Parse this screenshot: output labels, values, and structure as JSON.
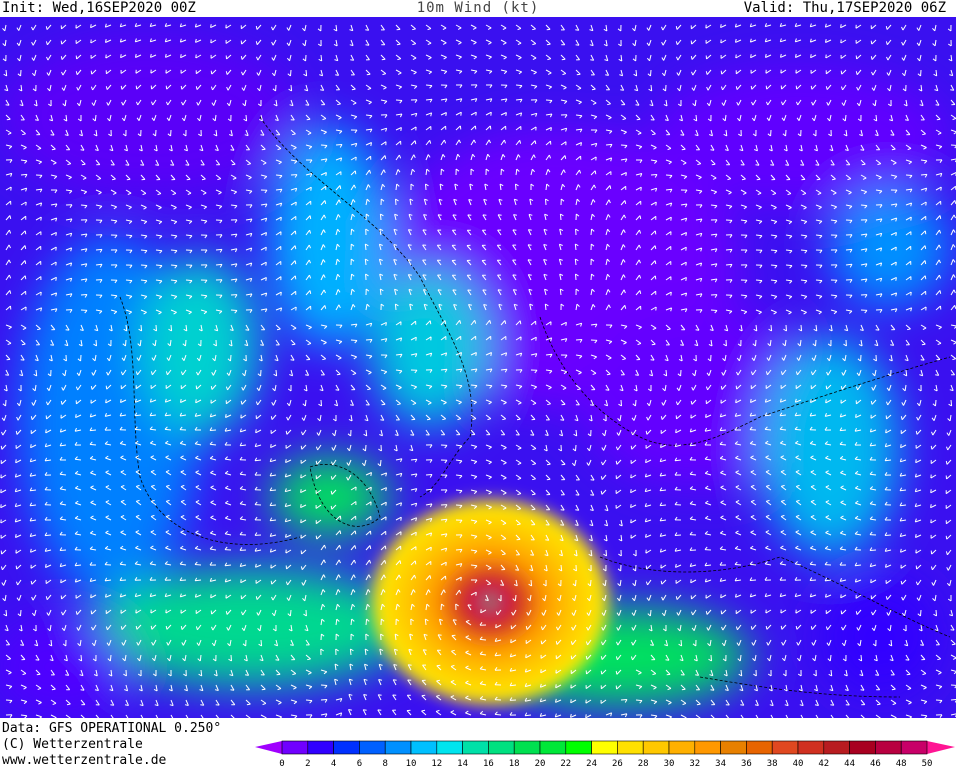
{
  "header": {
    "init": "Init: Wed,16SEP2020 00Z",
    "title": "10m Wind (kt)",
    "valid": "Valid: Thu,17SEP2020 06Z"
  },
  "footer": {
    "data_source": "Data: GFS OPERATIONAL 0.250°",
    "copyright": "(C) Wetterzentrale",
    "url": "www.wetterzentrale.de"
  },
  "legend": {
    "unit": "kt",
    "ticks": [
      "0",
      "2",
      "4",
      "6",
      "8",
      "10",
      "12",
      "14",
      "16",
      "18",
      "20",
      "22",
      "24",
      "26",
      "28",
      "30",
      "32",
      "34",
      "36",
      "38",
      "40",
      "42",
      "44",
      "46",
      "48",
      "50"
    ],
    "colors": [
      "#7000ff",
      "#3000ff",
      "#0030ff",
      "#0060ff",
      "#0090ff",
      "#00c0ff",
      "#00e4ee",
      "#00e0a8",
      "#00e080",
      "#00e050",
      "#00e838",
      "#00ff00",
      "#ffff00",
      "#ffe000",
      "#ffc800",
      "#ffb000",
      "#ff9800",
      "#e88000",
      "#e86400",
      "#e04820",
      "#d03020",
      "#b81c20",
      "#a80020",
      "#b80040",
      "#c80068"
    ],
    "under_color": "#a000ff",
    "over_color": "#ff1493"
  }
}
